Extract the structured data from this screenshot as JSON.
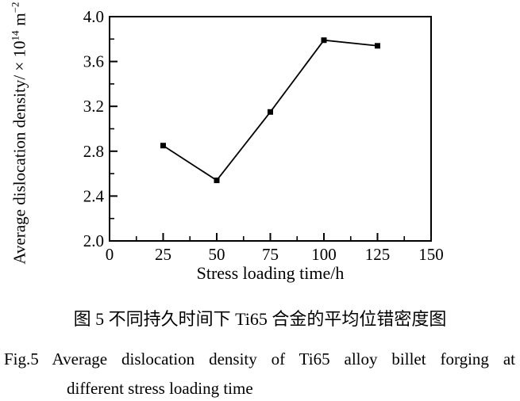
{
  "chart_data": {
    "type": "line",
    "title": "",
    "series": [
      {
        "name": "Average dislocation density",
        "x": [
          25,
          50,
          75,
          100,
          125
        ],
        "y": [
          2.85,
          2.54,
          3.15,
          3.79,
          3.74
        ],
        "marker": "filled-square",
        "color": "#000000"
      }
    ],
    "xlabel": "Stress loading time/h",
    "ylabel": "Average dislocation density/ × 10^14 m^-2",
    "xlim": [
      0,
      150
    ],
    "ylim": [
      2.0,
      4.0
    ],
    "x_major_ticks": [
      0,
      25,
      50,
      75,
      100,
      125,
      150
    ],
    "x_tick_labels": [
      "0",
      "25",
      "50",
      "75",
      "100",
      "125",
      "150"
    ],
    "x_minor_ticks": [
      12.5,
      37.5,
      62.5,
      87.5,
      112.5,
      137.5
    ],
    "y_major_ticks": [
      2.0,
      2.4,
      2.8,
      3.2,
      3.6,
      4.0
    ],
    "y_tick_labels": [
      "2.0",
      "2.4",
      "2.8",
      "3.2",
      "3.6",
      "4.0"
    ],
    "y_minor_ticks": [
      2.2,
      2.6,
      3.0,
      3.4,
      3.8
    ],
    "grid": false,
    "legend_position": "none",
    "frame": "full-box"
  },
  "ylabel_parts": {
    "base": "Average dislocation density/ × 10",
    "exponent": "14",
    "unit": "m",
    "unit_exponent": "−2"
  },
  "captions": {
    "zh": "图 5 不同持久时间下 Ti65 合金的平均位错密度图",
    "en_fig_label": "Fig.5",
    "en_line1": "Average dislocation density of Ti65 alloy billet forging at",
    "en_line2": "different stress loading time"
  },
  "colors": {
    "foreground": "#000000",
    "background": "#ffffff"
  }
}
